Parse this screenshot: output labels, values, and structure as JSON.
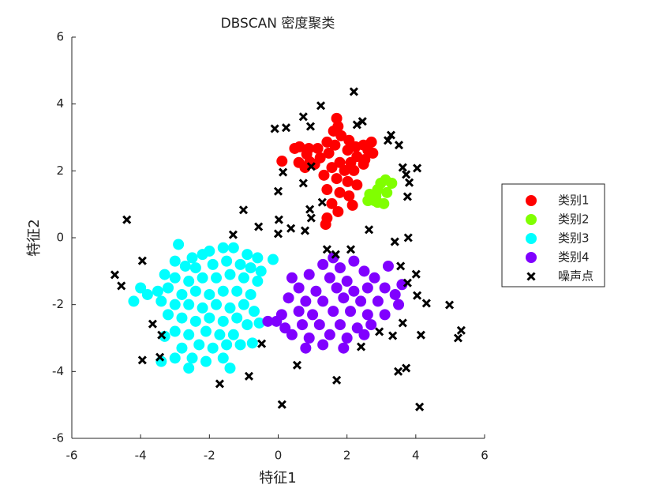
{
  "chart_data": {
    "type": "scatter",
    "title": "DBSCAN 密度聚类",
    "x_label": "特征1",
    "y_label": "特征2",
    "xlim": [
      -6,
      6
    ],
    "ylim": [
      -6,
      6
    ],
    "xticks": [
      -6,
      -4,
      -2,
      0,
      2,
      4,
      6
    ],
    "yticks": [
      -6,
      -4,
      -2,
      0,
      2,
      4,
      6
    ],
    "legend": "east-outside",
    "series": [
      {
        "name": "类别1",
        "color": "#ff0000",
        "marker": "o",
        "x": [
          0.11,
          0.48,
          0.62,
          0.89,
          1.15,
          1.42,
          1.65,
          1.47,
          1.22,
          0.92,
          0.6,
          0.83,
          1.7,
          1.74,
          1.61,
          1.83,
          2.06,
          2.02,
          2.25,
          2.48,
          2.61,
          2.75,
          2.29,
          2.52,
          2.11,
          1.79,
          1.56,
          1.93,
          2.2,
          1.33,
          1.7,
          2.02,
          2.29,
          1.42,
          1.79,
          2.06,
          1.56,
          1.74,
          1.42,
          1.38,
          2.16,
          2.48,
          1.06,
          0.78,
          2.71
        ],
        "y": [
          2.29,
          2.67,
          2.72,
          2.67,
          2.67,
          2.86,
          2.77,
          2.53,
          2.39,
          2.27,
          2.25,
          2.5,
          3.57,
          3.33,
          3.19,
          3.05,
          2.91,
          2.62,
          2.72,
          2.77,
          2.62,
          2.53,
          2.43,
          2.34,
          2.25,
          2.25,
          2.1,
          2.01,
          2.01,
          1.87,
          1.77,
          1.68,
          1.58,
          1.44,
          1.35,
          1.25,
          1.02,
          0.78,
          0.59,
          0.4,
          0.97,
          2.2,
          2.2,
          2.1,
          2.86
        ]
      },
      {
        "name": "类别2",
        "color": "#80ff00",
        "marker": "o",
        "x": [
          2.61,
          2.66,
          2.84,
          2.89,
          2.98,
          3.12,
          3.3,
          3.07,
          2.89,
          3.16,
          2.8
        ],
        "y": [
          1.11,
          1.3,
          1.25,
          1.44,
          1.63,
          1.73,
          1.63,
          1.02,
          1.06,
          1.35,
          1.11
        ]
      },
      {
        "name": "类别3",
        "color": "#00ffff",
        "marker": "o",
        "x": [
          -2.9,
          -2.5,
          -2.2,
          -2.0,
          -1.6,
          -1.3,
          -0.9,
          -0.6,
          -0.15,
          -3.0,
          -2.7,
          -2.4,
          -1.9,
          -1.5,
          -1.1,
          -0.8,
          -0.5,
          -3.3,
          -3.0,
          -2.6,
          -2.2,
          -1.8,
          -1.4,
          -1.0,
          -0.6,
          -4.0,
          -3.8,
          -3.5,
          -3.2,
          -2.8,
          -2.4,
          -2.0,
          -1.6,
          -1.2,
          -0.8,
          -4.2,
          -3.4,
          -3.0,
          -2.6,
          -2.2,
          -1.8,
          -1.4,
          -1.0,
          -0.7,
          -3.2,
          -2.8,
          -2.4,
          -2.0,
          -1.6,
          -1.2,
          -0.9,
          -0.55,
          -3.0,
          -2.6,
          -2.1,
          -1.7,
          -1.3,
          -3.3,
          -2.8,
          -2.3,
          -1.9,
          -1.5,
          -1.1,
          -0.75,
          -3.0,
          -2.5,
          -2.1,
          -1.6,
          -3.4,
          -2.6,
          -1.4
        ],
        "y": [
          -0.2,
          -0.6,
          -0.5,
          -0.4,
          -0.3,
          -0.3,
          -0.5,
          -0.6,
          -0.65,
          -0.7,
          -0.85,
          -0.9,
          -0.8,
          -0.7,
          -0.8,
          -0.9,
          -1.0,
          -1.1,
          -1.2,
          -1.3,
          -1.2,
          -1.2,
          -1.1,
          -1.2,
          -1.3,
          -1.5,
          -1.7,
          -1.6,
          -1.5,
          -1.7,
          -1.6,
          -1.7,
          -1.6,
          -1.6,
          -1.7,
          -1.9,
          -1.9,
          -2.0,
          -2.0,
          -2.1,
          -2.0,
          -2.1,
          -2.0,
          -2.2,
          -2.3,
          -2.4,
          -2.5,
          -2.4,
          -2.5,
          -2.4,
          -2.6,
          -2.55,
          -2.8,
          -2.9,
          -2.8,
          -2.9,
          -2.9,
          -2.95,
          -3.3,
          -3.2,
          -3.3,
          -3.2,
          -3.2,
          -3.15,
          -3.6,
          -3.6,
          -3.7,
          -3.6,
          -3.7,
          -3.9,
          -3.9
        ]
      },
      {
        "name": "类别4",
        "color": "#8000ff",
        "marker": "o",
        "x": [
          1.3,
          1.8,
          3.2,
          0.4,
          0.9,
          1.5,
          2.0,
          2.5,
          2.8,
          3.6,
          0.6,
          1.1,
          1.7,
          2.2,
          2.6,
          3.1,
          3.4,
          0.3,
          0.8,
          1.3,
          1.9,
          2.4,
          2.9,
          3.5,
          0.1,
          0.6,
          1.0,
          1.6,
          2.1,
          2.6,
          3.1,
          -0.3,
          0.2,
          0.7,
          1.2,
          1.8,
          2.3,
          2.7,
          0.4,
          0.9,
          1.5,
          2.0,
          2.5,
          0.8,
          1.3,
          1.9,
          -0.05,
          1.6,
          2.2
        ],
        "y": [
          -0.8,
          -0.9,
          -0.85,
          -1.2,
          -1.1,
          -1.2,
          -1.3,
          -1.0,
          -1.2,
          -1.4,
          -1.5,
          -1.6,
          -1.5,
          -1.6,
          -1.5,
          -1.5,
          -1.7,
          -1.8,
          -1.9,
          -1.9,
          -1.8,
          -1.9,
          -1.9,
          -2.0,
          -2.3,
          -2.2,
          -2.3,
          -2.2,
          -2.2,
          -2.3,
          -2.3,
          -2.5,
          -2.7,
          -2.6,
          -2.6,
          -2.6,
          -2.7,
          -2.6,
          -2.9,
          -3.0,
          -2.9,
          -3.0,
          -2.9,
          -3.3,
          -3.2,
          -3.3,
          -2.5,
          -0.6,
          -0.7
        ]
      },
      {
        "name": "噪声点",
        "color": "#000000",
        "marker": "x",
        "x": [
          2.2,
          1.24,
          -0.1,
          0.23,
          0.73,
          0.94,
          2.29,
          2.45,
          3.28,
          3.19,
          3.51,
          0.14,
          0.96,
          3.62,
          4.04,
          3.72,
          3.81,
          0.73,
          0.0,
          3.76,
          1.28,
          -1.01,
          0.92,
          0.02,
          0.96,
          -4.4,
          -0.57,
          0.78,
          0.37,
          0.0,
          -1.31,
          2.64,
          3.39,
          3.78,
          1.42,
          1.67,
          2.11,
          -3.95,
          3.56,
          -4.75,
          -4.56,
          4.01,
          3.76,
          4.04,
          4.31,
          4.98,
          -3.65,
          -3.39,
          3.62,
          5.32,
          5.23,
          4.15,
          2.94,
          3.33,
          2.41,
          -0.48,
          -3.95,
          -3.44,
          0.55,
          3.49,
          3.72,
          -0.85,
          -1.7,
          1.7,
          0.11,
          4.11
        ],
        "y": [
          4.37,
          3.95,
          3.26,
          3.29,
          3.62,
          3.33,
          3.38,
          3.48,
          3.07,
          2.91,
          2.77,
          1.96,
          2.13,
          2.1,
          2.08,
          1.89,
          1.65,
          1.63,
          1.39,
          1.23,
          1.06,
          0.83,
          0.85,
          0.54,
          0.59,
          0.54,
          0.33,
          0.21,
          0.28,
          0.12,
          0.09,
          0.24,
          -0.12,
          0.0,
          -0.35,
          -0.5,
          -0.35,
          -0.69,
          -0.85,
          -1.11,
          -1.44,
          -1.09,
          -1.35,
          -1.73,
          -1.96,
          -2.01,
          -2.58,
          -2.91,
          -2.55,
          -2.77,
          -3.0,
          -2.91,
          -2.81,
          -2.93,
          -3.26,
          -3.17,
          -3.66,
          -3.57,
          -3.81,
          -4.0,
          -3.9,
          -4.14,
          -4.37,
          -4.26,
          -4.99,
          -5.06
        ]
      }
    ]
  }
}
